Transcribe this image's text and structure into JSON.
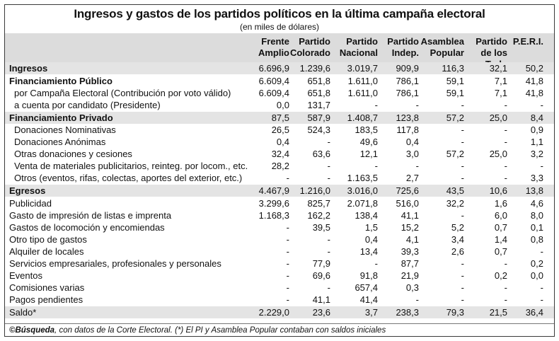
{
  "title": "Ingresos y gastos de los partidos políticos en la última campaña electoral",
  "subtitle": "(en miles de dólares)",
  "columns": [
    "Frente\nAmplio",
    "Partido\nColorado",
    "Partido\nNacional",
    "Partido\nIndep.",
    "Asamblea\nPopular",
    "Partido\nde los Trab.",
    "P.E.R.I."
  ],
  "rows": [
    {
      "label": "Ingresos",
      "style": "bold",
      "values": [
        "6.696,9",
        "1.239,6",
        "3.019,7",
        "909,9",
        "116,3",
        "32,1",
        "50,2"
      ]
    },
    {
      "label": "Financiamiento Público",
      "style": "bold",
      "values": [
        "6.609,4",
        "651,8",
        "1.611,0",
        "786,1",
        "59,1",
        "7,1",
        "41,8"
      ]
    },
    {
      "label": "por Campaña Electoral (Contribución por voto válido)",
      "style": "indent",
      "values": [
        "6.609,4",
        "651,8",
        "1.611,0",
        "786,1",
        "59,1",
        "7,1",
        "41,8"
      ]
    },
    {
      "label": "a cuenta por candidato (Presidente)",
      "style": "indent",
      "values": [
        "0,0",
        "131,7",
        "-",
        "-",
        "-",
        "-",
        "-"
      ]
    },
    {
      "label": "Financiamiento Privado",
      "style": "bold",
      "values": [
        "87,5",
        "587,9",
        "1.408,7",
        "123,8",
        "57,2",
        "25,0",
        "8,4"
      ]
    },
    {
      "label": "Donaciones Nominativas",
      "style": "indent",
      "values": [
        "26,5",
        "524,3",
        "183,5",
        "117,8",
        "-",
        "-",
        "0,9"
      ]
    },
    {
      "label": "Donaciones Anónimas",
      "style": "indent",
      "values": [
        "0,4",
        "-",
        "49,6",
        "0,4",
        "-",
        "-",
        "1,1"
      ]
    },
    {
      "label": "Otras donaciones y cesiones",
      "style": "indent",
      "values": [
        "32,4",
        "63,6",
        "12,1",
        "3,0",
        "57,2",
        "25,0",
        "3,2"
      ]
    },
    {
      "label": "Venta de materiales publicitarios, reinteg. por locom., etc.",
      "style": "indent",
      "values": [
        "28,2",
        "-",
        "-",
        "-",
        "-",
        "-",
        "-"
      ]
    },
    {
      "label": "Otros (eventos, rifas, colectas, aportes del exterior, etc.)",
      "style": "indent",
      "values": [
        "-",
        "-",
        "1.163,5",
        "2,7",
        "-",
        "-",
        "3,3"
      ]
    },
    {
      "label": "Egresos",
      "style": "bold",
      "values": [
        "4.467,9",
        "1.216,0",
        "3.016,0",
        "725,6",
        "43,5",
        "10,6",
        "13,8"
      ]
    },
    {
      "label": "Publicidad",
      "style": "plain",
      "values": [
        "3.299,6",
        "825,7",
        "2.071,8",
        "516,0",
        "32,2",
        "1,6",
        "4,6"
      ]
    },
    {
      "label": "Gasto de impresión de listas e imprenta",
      "style": "plain",
      "values": [
        "1.168,3",
        "162,2",
        "138,4",
        "41,1",
        "-",
        "6,0",
        "8,0"
      ]
    },
    {
      "label": "Gastos de locomoción y encomiendas",
      "style": "plain",
      "values": [
        "-",
        "39,5",
        "1,5",
        "15,2",
        "5,2",
        "0,7",
        "0,1"
      ]
    },
    {
      "label": "Otro tipo de gastos",
      "style": "plain",
      "values": [
        "-",
        "-",
        "0,4",
        "4,1",
        "3,4",
        "1,4",
        "0,8"
      ]
    },
    {
      "label": "Alquiler de locales",
      "style": "plain",
      "values": [
        "-",
        "-",
        "13,4",
        "39,3",
        "2,6",
        "0,7",
        "-"
      ]
    },
    {
      "label": "Servicios empresariales, profesionales y personales",
      "style": "plain",
      "values": [
        "-",
        "77,9",
        "-",
        "87,7",
        "-",
        "-",
        "0,2"
      ]
    },
    {
      "label": "Eventos",
      "style": "plain",
      "values": [
        "-",
        "69,6",
        "91,8",
        "21,9",
        "-",
        "0,2",
        "0,0"
      ]
    },
    {
      "label": "Comisiones varias",
      "style": "plain",
      "values": [
        "-",
        "-",
        "657,4",
        "0,3",
        "-",
        "-",
        "-"
      ]
    },
    {
      "label": "Pagos pendientes",
      "style": "plain",
      "values": [
        "-",
        "41,1",
        "41,4",
        "-",
        "-",
        "-",
        "-"
      ]
    },
    {
      "label": "Saldo*",
      "style": "plain",
      "values": [
        "2.229,0",
        "23,6",
        "3,7",
        "238,3",
        "79,3",
        "21,5",
        "36,4"
      ]
    }
  ],
  "footer": {
    "brand": "©Búsqueda",
    "text": ", con datos de la Corte Electoral. (*) El PI y Asamblea Popular contaban con saldos iniciales"
  }
}
